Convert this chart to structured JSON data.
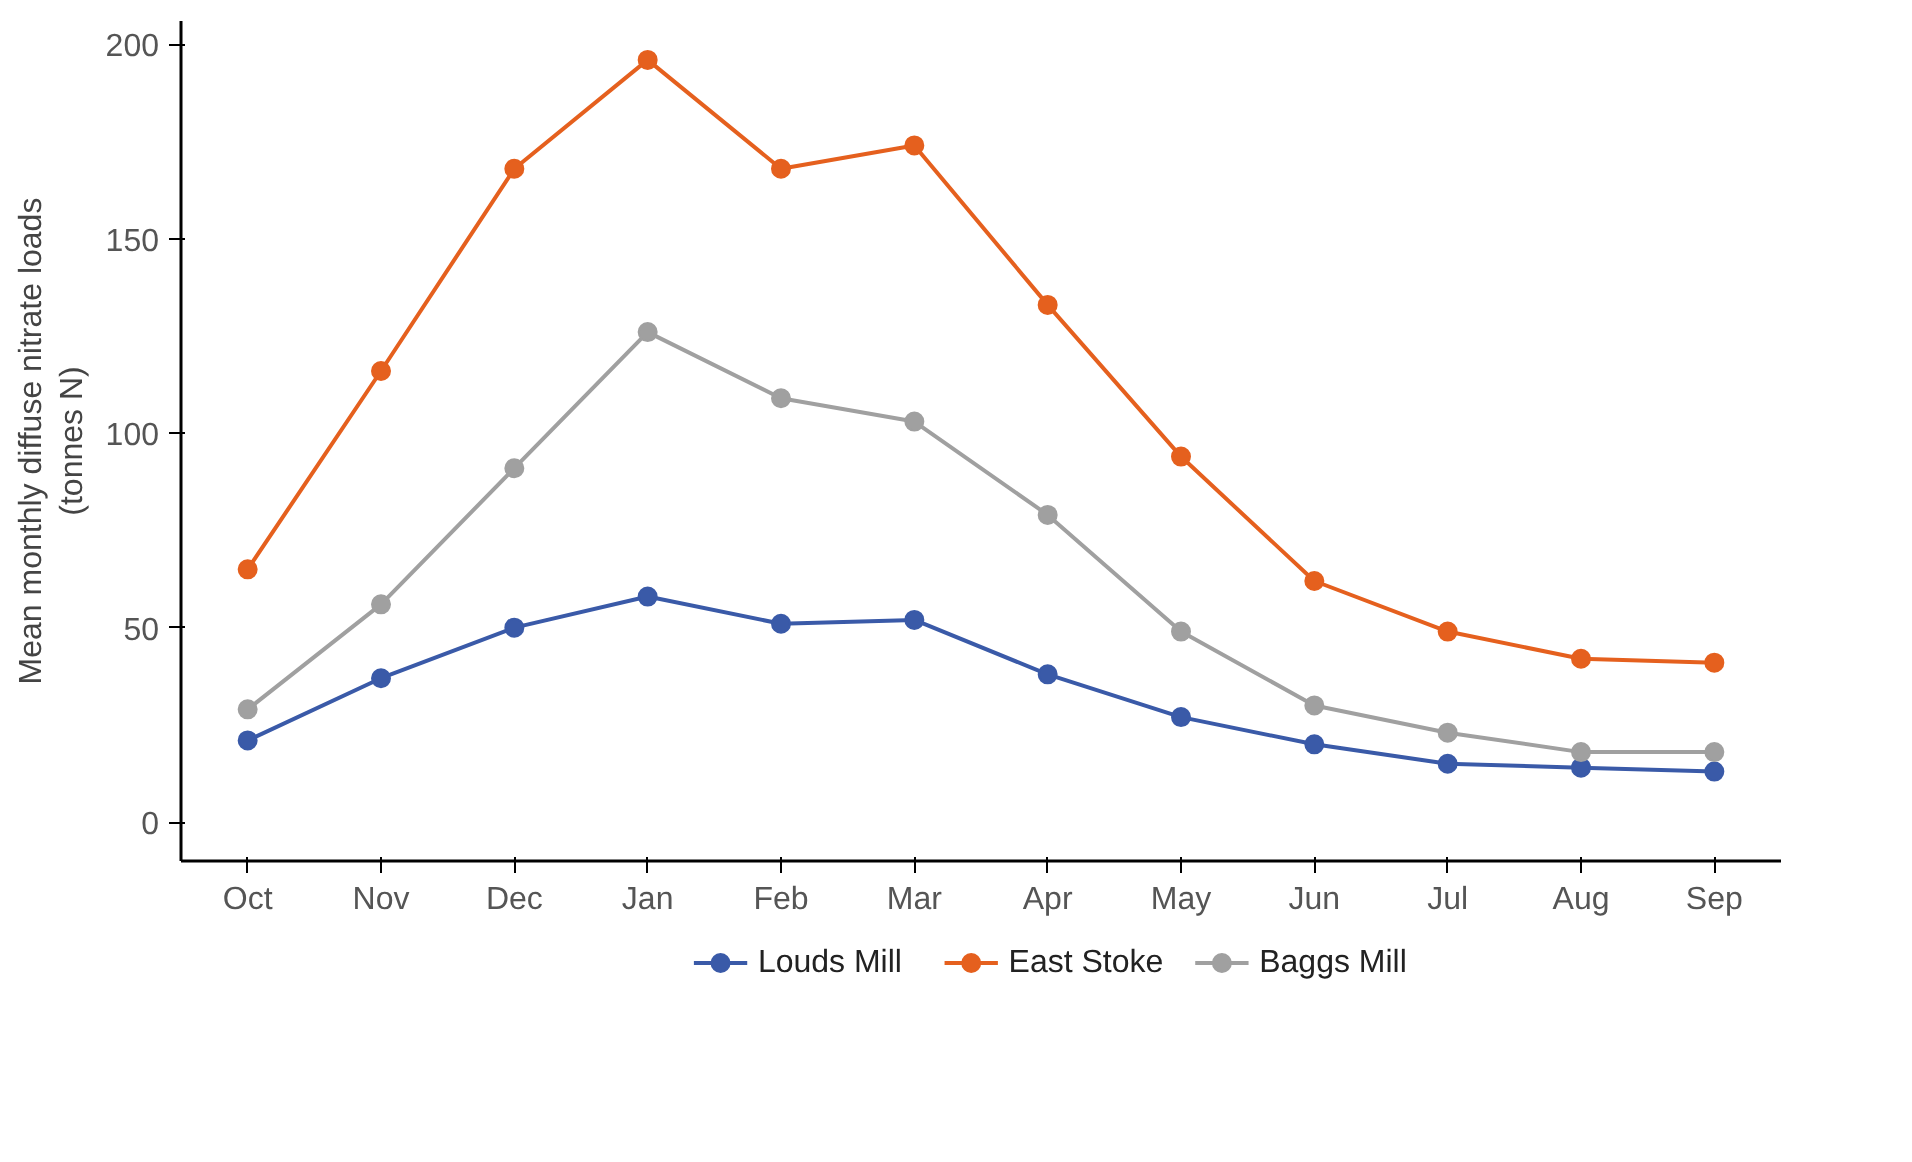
{
  "chart_data": {
    "type": "line",
    "ylabel": "Mean monthly diffuse nitrate loads\n(tonnes N)",
    "categories": [
      "Oct",
      "Nov",
      "Dec",
      "Jan",
      "Feb",
      "Mar",
      "Apr",
      "May",
      "Jun",
      "Jul",
      "Aug",
      "Sep"
    ],
    "ylim": [
      -10,
      206
    ],
    "yticks": [
      0,
      50,
      100,
      150,
      200
    ],
    "grid": false,
    "legend": "bottom",
    "marker": "circle",
    "line_style": "solid",
    "series": [
      {
        "name": "Louds Mill",
        "color": "#3a5aa8",
        "values": [
          21,
          37,
          50,
          58,
          51,
          52,
          38,
          27,
          20,
          15,
          14,
          13
        ]
      },
      {
        "name": "East Stoke",
        "color": "#e5601e",
        "values": [
          65,
          116,
          168,
          196,
          168,
          174,
          133,
          94,
          62,
          49,
          42,
          41
        ]
      },
      {
        "name": "Baggs Mill",
        "color": "#a0a0a0",
        "values": [
          29,
          56,
          91,
          126,
          109,
          103,
          79,
          49,
          30,
          23,
          18,
          18
        ]
      }
    ]
  }
}
